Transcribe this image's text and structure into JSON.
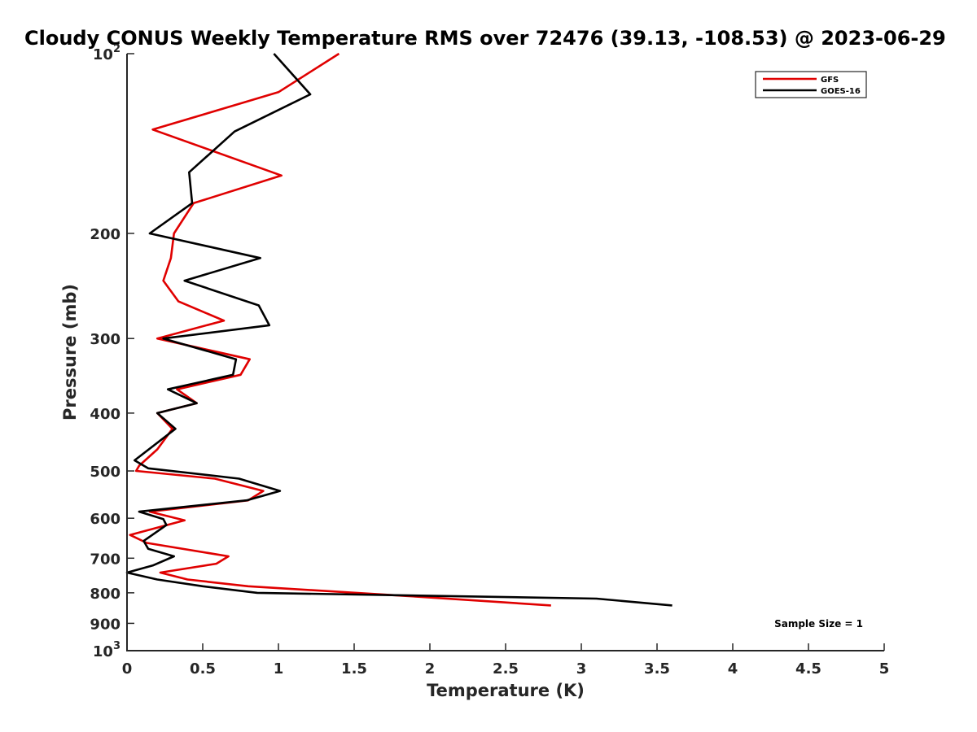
{
  "chart_data": {
    "type": "line",
    "title": "Cloudy CONUS Weekly Temperature RMS over 72476 (39.13, -108.53) @ 2023-06-29",
    "xlabel": "Temperature (K)",
    "ylabel": "Pressure (mb)",
    "xlim": [
      0,
      5
    ],
    "ylim": [
      100,
      1000
    ],
    "yscale": "log",
    "y_reversed": true,
    "grid": false,
    "legend_position": "top-right",
    "x_ticks": [
      "0",
      "0.5",
      "1",
      "1.5",
      "2",
      "2.5",
      "3",
      "3.5",
      "4",
      "4.5",
      "5"
    ],
    "y_ticks": [
      {
        "value": 100,
        "base": "10",
        "exp": "2"
      },
      {
        "value": 200,
        "label": "200"
      },
      {
        "value": 300,
        "label": "300"
      },
      {
        "value": 400,
        "label": "400"
      },
      {
        "value": 500,
        "label": "500"
      },
      {
        "value": 600,
        "label": "600"
      },
      {
        "value": 700,
        "label": "700"
      },
      {
        "value": 800,
        "label": "800"
      },
      {
        "value": 900,
        "label": "900"
      },
      {
        "value": 1000,
        "base": "10",
        "exp": "3"
      }
    ],
    "series": [
      {
        "name": "GFS",
        "color": "#e00000",
        "points": [
          {
            "x": 1.4,
            "y": 100
          },
          {
            "x": 1.0,
            "y": 116
          },
          {
            "x": 0.17,
            "y": 134
          },
          {
            "x": 1.02,
            "y": 160
          },
          {
            "x": 0.44,
            "y": 178
          },
          {
            "x": 0.31,
            "y": 200
          },
          {
            "x": 0.29,
            "y": 220
          },
          {
            "x": 0.24,
            "y": 240
          },
          {
            "x": 0.34,
            "y": 260
          },
          {
            "x": 0.64,
            "y": 280
          },
          {
            "x": 0.2,
            "y": 300
          },
          {
            "x": 0.81,
            "y": 325
          },
          {
            "x": 0.75,
            "y": 345
          },
          {
            "x": 0.33,
            "y": 365
          },
          {
            "x": 0.46,
            "y": 385
          },
          {
            "x": 0.2,
            "y": 400
          },
          {
            "x": 0.3,
            "y": 425
          },
          {
            "x": 0.2,
            "y": 460
          },
          {
            "x": 0.08,
            "y": 490
          },
          {
            "x": 0.06,
            "y": 500
          },
          {
            "x": 0.58,
            "y": 515
          },
          {
            "x": 0.9,
            "y": 540
          },
          {
            "x": 0.8,
            "y": 560
          },
          {
            "x": 0.15,
            "y": 585
          },
          {
            "x": 0.38,
            "y": 605
          },
          {
            "x": 0.02,
            "y": 640
          },
          {
            "x": 0.13,
            "y": 660
          },
          {
            "x": 0.67,
            "y": 695
          },
          {
            "x": 0.59,
            "y": 715
          },
          {
            "x": 0.22,
            "y": 740
          },
          {
            "x": 0.4,
            "y": 760
          },
          {
            "x": 0.8,
            "y": 780
          },
          {
            "x": 1.85,
            "y": 810
          },
          {
            "x": 2.8,
            "y": 840
          }
        ]
      },
      {
        "name": "GOES-16",
        "color": "#000000",
        "points": [
          {
            "x": 0.97,
            "y": 100
          },
          {
            "x": 1.21,
            "y": 117
          },
          {
            "x": 0.71,
            "y": 135
          },
          {
            "x": 0.41,
            "y": 158
          },
          {
            "x": 0.43,
            "y": 178
          },
          {
            "x": 0.15,
            "y": 200
          },
          {
            "x": 0.88,
            "y": 220
          },
          {
            "x": 0.38,
            "y": 240
          },
          {
            "x": 0.87,
            "y": 264
          },
          {
            "x": 0.94,
            "y": 285
          },
          {
            "x": 0.24,
            "y": 300
          },
          {
            "x": 0.72,
            "y": 325
          },
          {
            "x": 0.7,
            "y": 345
          },
          {
            "x": 0.27,
            "y": 365
          },
          {
            "x": 0.46,
            "y": 385
          },
          {
            "x": 0.2,
            "y": 400
          },
          {
            "x": 0.32,
            "y": 425
          },
          {
            "x": 0.05,
            "y": 480
          },
          {
            "x": 0.14,
            "y": 495
          },
          {
            "x": 0.74,
            "y": 515
          },
          {
            "x": 1.01,
            "y": 540
          },
          {
            "x": 0.79,
            "y": 560
          },
          {
            "x": 0.08,
            "y": 585
          },
          {
            "x": 0.24,
            "y": 602
          },
          {
            "x": 0.26,
            "y": 616
          },
          {
            "x": 0.11,
            "y": 655
          },
          {
            "x": 0.14,
            "y": 675
          },
          {
            "x": 0.31,
            "y": 695
          },
          {
            "x": 0.17,
            "y": 720
          },
          {
            "x": 0.0,
            "y": 740
          },
          {
            "x": 0.2,
            "y": 760
          },
          {
            "x": 0.5,
            "y": 780
          },
          {
            "x": 0.86,
            "y": 800
          },
          {
            "x": 3.1,
            "y": 818
          },
          {
            "x": 3.6,
            "y": 840
          }
        ]
      }
    ],
    "annotation": "Sample Size = 1"
  }
}
